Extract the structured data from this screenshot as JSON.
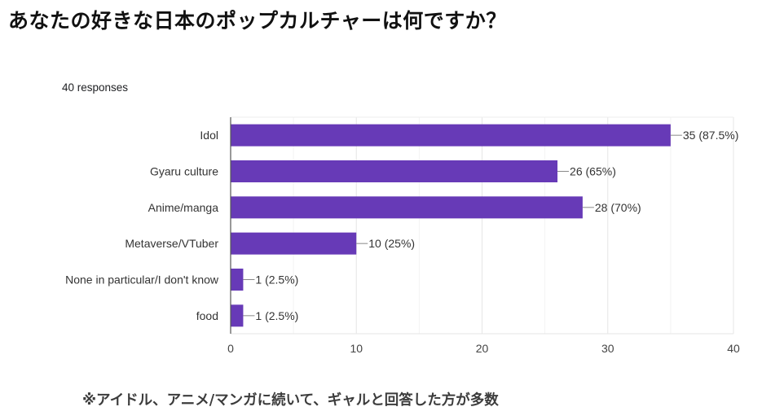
{
  "title": "あなたの好きな日本のポップカルチャーは何ですか？",
  "responses": "40 responses",
  "footnote": "※アイドル、アニメ/マンガに続いて、ギャルと回答した方が多数",
  "chart_data": {
    "type": "bar",
    "orientation": "horizontal",
    "title": "あなたの好きな日本のポップカルチャーは何ですか？",
    "subtitle": "40 responses",
    "xlabel": "",
    "ylabel": "",
    "categories": [
      "Idol",
      "Gyaru culture",
      "Anime/manga",
      "Metaverse/VTuber",
      "None in particular/I don't know",
      "food"
    ],
    "values": [
      35,
      26,
      28,
      10,
      1,
      1
    ],
    "data_labels": [
      "35 (87.5%)",
      "26 (65%)",
      "28 (70%)",
      "10 (25%)",
      "1 (2.5%)",
      "1 (2.5%)"
    ],
    "xlim": [
      0,
      40
    ],
    "xticks": [
      0,
      10,
      20,
      30,
      40
    ],
    "xtick_labels": [
      "0",
      "10",
      "20",
      "30",
      "40"
    ],
    "grid": true,
    "legend": "none",
    "bar_color": "#673ab7"
  }
}
